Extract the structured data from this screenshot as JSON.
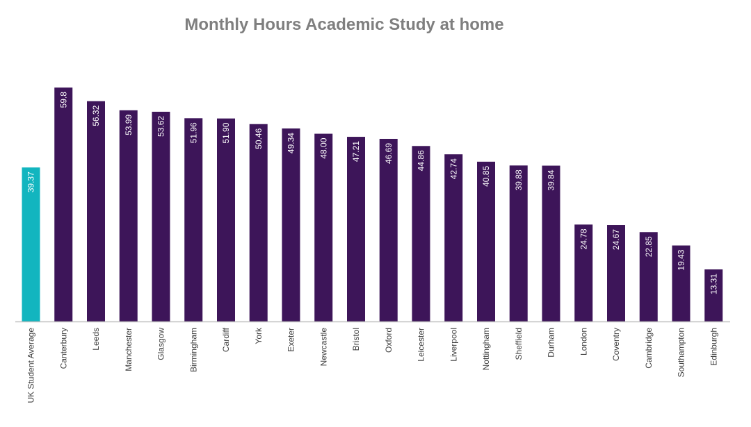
{
  "chart_data": {
    "type": "bar",
    "title": "Monthly Hours Academic Study at home",
    "xlabel": "",
    "ylabel": "",
    "ylim": [
      0,
      60
    ],
    "grid": false,
    "legend": "none",
    "categories": [
      "UK Student Average",
      "Canterbury",
      "Leeds",
      "Manchester",
      "Glasgow",
      "Birmingham",
      "Cardiff",
      "York",
      "Exeter",
      "Newcastle",
      "Bristol",
      "Oxford",
      "Leicester",
      "Liverpool",
      "Nottingham",
      "Sheffield",
      "Durham",
      "London",
      "Coventry",
      "Cambridge",
      "Southampton",
      "Edinburgh"
    ],
    "values": [
      39.37,
      59.8,
      56.32,
      53.99,
      53.62,
      51.96,
      51.9,
      50.46,
      49.34,
      48.0,
      47.21,
      46.69,
      44.86,
      42.74,
      40.85,
      39.88,
      39.84,
      24.78,
      24.67,
      22.85,
      19.43,
      13.31
    ],
    "value_labels": [
      "39.37",
      "59.8",
      "56.32",
      "53.99",
      "53.62",
      "51.96",
      "51.90",
      "50.46",
      "49.34",
      "48.00",
      "47.21",
      "46.69",
      "44.86",
      "42.74",
      "40.85",
      "39.88",
      "39.84",
      "24.78",
      "24.67",
      "22.85",
      "19.43",
      "13.31"
    ],
    "colors": {
      "highlight": "#12b5bf",
      "bar": "#3d1559",
      "axis": "#bfbfbf",
      "title": "#7f7f7f",
      "label": "#404040",
      "value_label": "#ffffff"
    },
    "highlight_index": 0
  }
}
